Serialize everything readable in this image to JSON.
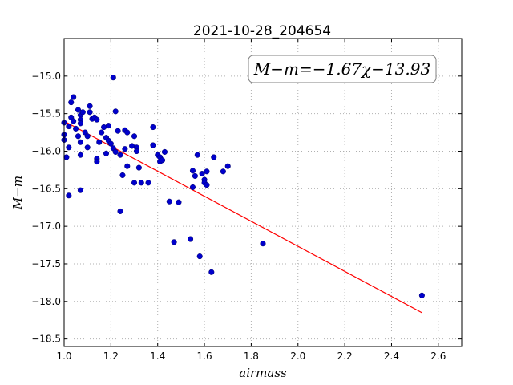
{
  "chart_data": {
    "type": "scatter",
    "title": "2021-10-28_204654",
    "xlabel": "airmass",
    "ylabel": "M−m",
    "xlim": [
      1.0,
      2.7
    ],
    "ylim": [
      -18.6,
      -14.5
    ],
    "y_inverted": true,
    "xticks": [
      "1.0",
      "1.2",
      "1.4",
      "1.6",
      "1.8",
      "2.0",
      "2.2",
      "2.4",
      "2.6"
    ],
    "yticks": [
      "−15.0",
      "−15.5",
      "−16.0",
      "−16.5",
      "−17.0",
      "−17.5",
      "−18.0",
      "−18.5"
    ],
    "grid": true,
    "annotation": "M−m=−1.67χ−13.93",
    "colors": {
      "points": "#0000cc",
      "fit_line": "#ff0000",
      "grid": "#b0b0b0"
    },
    "fit_line": {
      "x": [
        1.0,
        2.53
      ],
      "y": [
        -15.6,
        -18.15
      ]
    },
    "points": [
      {
        "x": 1.0,
        "y": -15.78
      },
      {
        "x": 1.0,
        "y": -15.85
      },
      {
        "x": 1.0,
        "y": -15.62
      },
      {
        "x": 1.01,
        "y": -16.08
      },
      {
        "x": 1.02,
        "y": -15.67
      },
      {
        "x": 1.02,
        "y": -15.95
      },
      {
        "x": 1.02,
        "y": -16.59
      },
      {
        "x": 1.03,
        "y": -15.35
      },
      {
        "x": 1.03,
        "y": -15.55
      },
      {
        "x": 1.04,
        "y": -15.6
      },
      {
        "x": 1.04,
        "y": -15.28
      },
      {
        "x": 1.05,
        "y": -15.7
      },
      {
        "x": 1.06,
        "y": -15.45
      },
      {
        "x": 1.06,
        "y": -15.8
      },
      {
        "x": 1.07,
        "y": -15.52
      },
      {
        "x": 1.07,
        "y": -15.58
      },
      {
        "x": 1.07,
        "y": -15.63
      },
      {
        "x": 1.07,
        "y": -15.88
      },
      {
        "x": 1.07,
        "y": -16.05
      },
      {
        "x": 1.07,
        "y": -16.52
      },
      {
        "x": 1.08,
        "y": -15.48
      },
      {
        "x": 1.09,
        "y": -15.75
      },
      {
        "x": 1.1,
        "y": -15.8
      },
      {
        "x": 1.1,
        "y": -15.95
      },
      {
        "x": 1.11,
        "y": -15.4
      },
      {
        "x": 1.11,
        "y": -15.48
      },
      {
        "x": 1.12,
        "y": -15.57
      },
      {
        "x": 1.13,
        "y": -15.55
      },
      {
        "x": 1.14,
        "y": -15.58
      },
      {
        "x": 1.14,
        "y": -16.1
      },
      {
        "x": 1.14,
        "y": -16.14
      },
      {
        "x": 1.15,
        "y": -15.88
      },
      {
        "x": 1.16,
        "y": -15.75
      },
      {
        "x": 1.17,
        "y": -15.68
      },
      {
        "x": 1.18,
        "y": -15.82
      },
      {
        "x": 1.18,
        "y": -16.03
      },
      {
        "x": 1.19,
        "y": -15.66
      },
      {
        "x": 1.19,
        "y": -15.86
      },
      {
        "x": 1.2,
        "y": -15.9
      },
      {
        "x": 1.21,
        "y": -15.96
      },
      {
        "x": 1.21,
        "y": -15.02
      },
      {
        "x": 1.22,
        "y": -15.47
      },
      {
        "x": 1.22,
        "y": -16.01
      },
      {
        "x": 1.23,
        "y": -15.73
      },
      {
        "x": 1.24,
        "y": -16.05
      },
      {
        "x": 1.24,
        "y": -16.8
      },
      {
        "x": 1.25,
        "y": -16.32
      },
      {
        "x": 1.26,
        "y": -15.72
      },
      {
        "x": 1.26,
        "y": -15.97
      },
      {
        "x": 1.27,
        "y": -15.75
      },
      {
        "x": 1.27,
        "y": -16.2
      },
      {
        "x": 1.29,
        "y": -15.93
      },
      {
        "x": 1.3,
        "y": -15.8
      },
      {
        "x": 1.3,
        "y": -16.42
      },
      {
        "x": 1.31,
        "y": -15.95
      },
      {
        "x": 1.31,
        "y": -16.0
      },
      {
        "x": 1.32,
        "y": -16.22
      },
      {
        "x": 1.33,
        "y": -16.42
      },
      {
        "x": 1.36,
        "y": -16.42
      },
      {
        "x": 1.38,
        "y": -15.92
      },
      {
        "x": 1.38,
        "y": -15.68
      },
      {
        "x": 1.4,
        "y": -16.05
      },
      {
        "x": 1.41,
        "y": -16.08
      },
      {
        "x": 1.41,
        "y": -16.14
      },
      {
        "x": 1.42,
        "y": -16.12
      },
      {
        "x": 1.43,
        "y": -16.01
      },
      {
        "x": 1.45,
        "y": -16.67
      },
      {
        "x": 1.47,
        "y": -17.21
      },
      {
        "x": 1.49,
        "y": -16.68
      },
      {
        "x": 1.54,
        "y": -17.17
      },
      {
        "x": 1.55,
        "y": -16.48
      },
      {
        "x": 1.55,
        "y": -16.26
      },
      {
        "x": 1.56,
        "y": -16.33
      },
      {
        "x": 1.57,
        "y": -16.05
      },
      {
        "x": 1.58,
        "y": -17.4
      },
      {
        "x": 1.59,
        "y": -16.3
      },
      {
        "x": 1.6,
        "y": -16.38
      },
      {
        "x": 1.6,
        "y": -16.42
      },
      {
        "x": 1.61,
        "y": -16.27
      },
      {
        "x": 1.61,
        "y": -16.45
      },
      {
        "x": 1.63,
        "y": -17.61
      },
      {
        "x": 1.64,
        "y": -16.08
      },
      {
        "x": 1.68,
        "y": -16.27
      },
      {
        "x": 1.7,
        "y": -16.2
      },
      {
        "x": 1.85,
        "y": -17.23
      },
      {
        "x": 2.53,
        "y": -17.92
      }
    ]
  }
}
